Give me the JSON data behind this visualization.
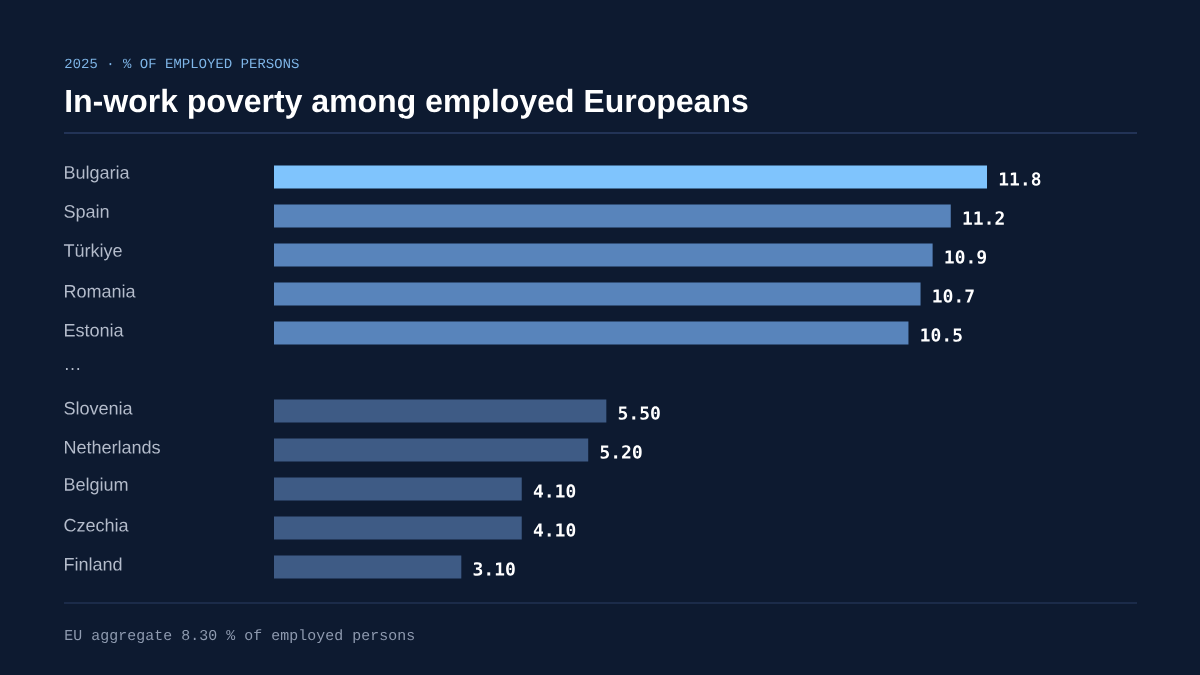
{
  "chart_data": {
    "type": "bar",
    "orientation": "horizontal",
    "title": "In-work poverty among employed Europeans",
    "subtitle": "2025  ·  % OF EMPLOYED PERSONS",
    "categories": [
      "Bulgaria",
      "Spain",
      "Türkiye",
      "Romania",
      "Estonia",
      "…",
      "Slovenia",
      "Netherlands",
      "Belgium",
      "Czechia",
      "Finland"
    ],
    "values": [
      11.8,
      11.2,
      10.9,
      10.7,
      10.5,
      null,
      5.5,
      5.2,
      4.1,
      4.1,
      3.1
    ],
    "value_labels": [
      "11.8",
      "11.2",
      "10.9",
      "10.7",
      "10.5",
      null,
      "5.50",
      "5.20",
      "4.10",
      "4.10",
      "3.10"
    ],
    "colors": [
      "#7fc4fd",
      "#5884bb",
      "#5884bb",
      "#5884bb",
      "#5884bb",
      null,
      "#3e5b85",
      "#3e5b85",
      "#3e5b85",
      "#3e5b85",
      "#3e5b85"
    ],
    "annotations": [
      "EU aggregate  8.30  % of employed persons"
    ]
  }
}
